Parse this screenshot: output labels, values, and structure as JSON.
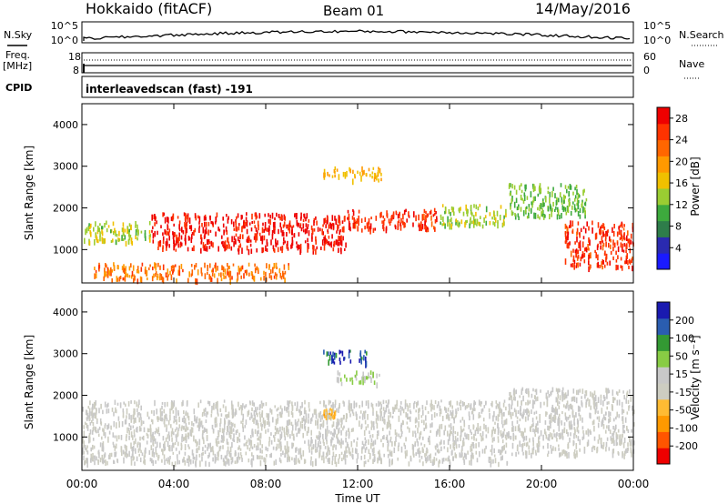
{
  "header": {
    "title": "Hokkaido (fitACF)",
    "beam": "Beam 01",
    "date": "14/May/2016"
  },
  "strips": {
    "nsky_label": "N.Sky",
    "nsky_ticks": [
      "10^5",
      "10^0"
    ],
    "nsearch_label": "N.Search",
    "nsearch_ticks": [
      "10^5",
      "10^0"
    ],
    "freq_label_top": "Freq.",
    "freq_label_unit": "[MHz]",
    "freq_ticks": [
      "18",
      "8"
    ],
    "nave_label": "Nave",
    "nave_ticks": [
      "60",
      "0"
    ],
    "cpid_label": "CPID",
    "cpid_text": "interleavedscan (fast) -191"
  },
  "colors": {
    "power": [
      "#1a1aff",
      "#2a2ab0",
      "#2e7d4a",
      "#3daa3d",
      "#9acd32",
      "#f0c000",
      "#ff9900",
      "#ff6600",
      "#ff3300",
      "#ee0000"
    ],
    "velocity": [
      "#ee0000",
      "#ff5500",
      "#ff9900",
      "#ffbb33",
      "#cdcdc1",
      "#c8c8c8",
      "#88cc44",
      "#339933",
      "#2a5db0",
      "#1a1ab0"
    ]
  },
  "chart_data": [
    {
      "type": "heatmap",
      "panel": "power",
      "xlabel": "",
      "ylabel": "Slant Range [km]",
      "x_ticks": [
        "00:00",
        "04:00",
        "08:00",
        "12:00",
        "16:00",
        "20:00",
        "00:00"
      ],
      "y_ticks": [
        "1000",
        "2000",
        "3000",
        "4000"
      ],
      "xlim": [
        0,
        24
      ],
      "ylim": [
        200,
        4500
      ],
      "colorbar_label": "Power [dB]",
      "colorbar_ticks": [
        "4",
        "8",
        "12",
        "16",
        "20",
        "24",
        "28"
      ],
      "colorbar_range": [
        0,
        30
      ],
      "features": [
        {
          "t0": 0.0,
          "t1": 3.0,
          "r0": 1200,
          "r1": 1700,
          "value": 14
        },
        {
          "t0": 3.0,
          "t1": 11.5,
          "r0": 1000,
          "r1": 1900,
          "value": 28
        },
        {
          "t0": 11.5,
          "t1": 15.5,
          "r0": 1500,
          "r1": 2000,
          "value": 26
        },
        {
          "t0": 15.5,
          "t1": 18.5,
          "r0": 1600,
          "r1": 2100,
          "value": 14
        },
        {
          "t0": 0.5,
          "t1": 9.0,
          "r0": 300,
          "r1": 700,
          "value": 22
        },
        {
          "t0": 10.5,
          "t1": 13.0,
          "r0": 2700,
          "r1": 3000,
          "value": 18
        },
        {
          "t0": 18.5,
          "t1": 22.0,
          "r0": 1800,
          "r1": 2600,
          "value": 12
        },
        {
          "t0": 21.0,
          "t1": 24.0,
          "r0": 600,
          "r1": 1700,
          "value": 26
        }
      ]
    },
    {
      "type": "heatmap",
      "panel": "velocity",
      "xlabel": "Time UT",
      "ylabel": "Slant Range [km]",
      "x_ticks": [
        "00:00",
        "04:00",
        "08:00",
        "12:00",
        "16:00",
        "20:00",
        "00:00"
      ],
      "y_ticks": [
        "1000",
        "2000",
        "3000",
        "4000"
      ],
      "xlim": [
        0,
        24
      ],
      "ylim": [
        200,
        4500
      ],
      "colorbar_label": "Velocity [m s⁻¹]",
      "colorbar_ticks": [
        "200",
        "100",
        "50",
        "15",
        "-15",
        "-50",
        "-100",
        "-200"
      ],
      "colorbar_range": [
        -250,
        250
      ],
      "features": [
        {
          "t0": 0.0,
          "t1": 18.5,
          "r0": 400,
          "r1": 1900,
          "value": 0
        },
        {
          "t0": 10.5,
          "t1": 12.5,
          "r0": 2800,
          "r1": 3100,
          "value": 180
        },
        {
          "t0": 11.0,
          "t1": 13.0,
          "r0": 2300,
          "r1": 2600,
          "value": 50
        },
        {
          "t0": 10.5,
          "t1": 11.0,
          "r0": 1500,
          "r1": 1700,
          "value": -70
        },
        {
          "t0": 18.5,
          "t1": 24.0,
          "r0": 600,
          "r1": 2200,
          "value": 5
        }
      ]
    }
  ]
}
